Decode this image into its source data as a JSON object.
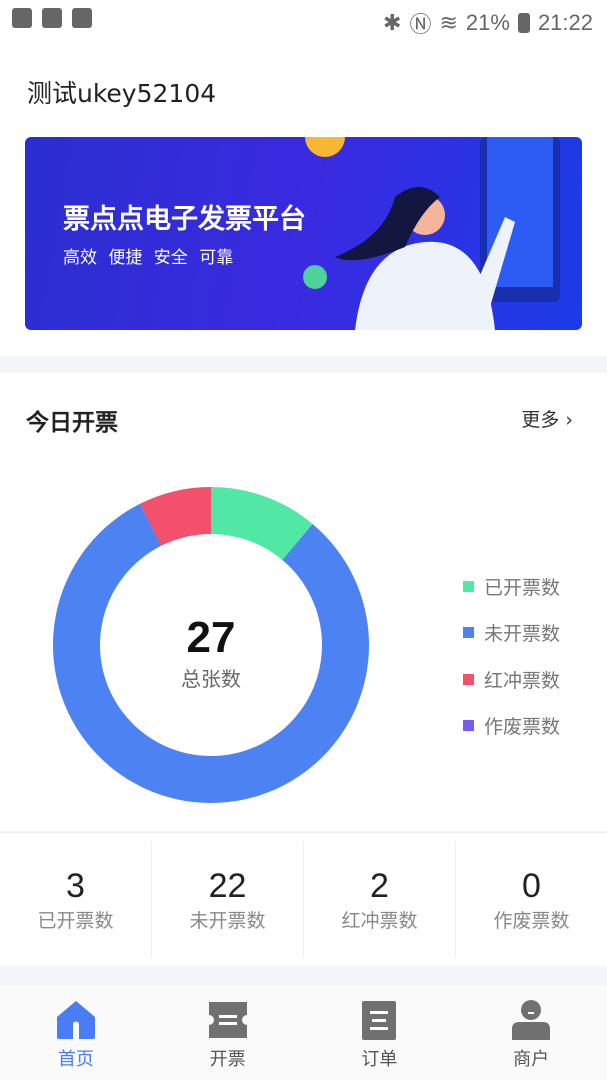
{
  "status": {
    "battery": "21%",
    "time": "21:22"
  },
  "header": {
    "title": "测试ukey52104"
  },
  "banner": {
    "headline": "票点点电子发票平台",
    "tagline": "高效 便捷 安全 可靠"
  },
  "today": {
    "title": "今日开票",
    "more": "更多",
    "total": "27",
    "total_label": "总张数"
  },
  "chart_data": {
    "type": "pie",
    "categories": [
      "已开票数",
      "未开票数",
      "红冲票数",
      "作废票数"
    ],
    "values": [
      3,
      22,
      2,
      0
    ],
    "colors": [
      "#50e8a4",
      "#4c82f2",
      "#f2506b",
      "#7a5af5"
    ],
    "legend": "right"
  },
  "stats": [
    {
      "value": "3",
      "label": "已开票数"
    },
    {
      "value": "22",
      "label": "未开票数"
    },
    {
      "value": "2",
      "label": "红冲票数"
    },
    {
      "value": "0",
      "label": "作废票数"
    }
  ],
  "nav": [
    {
      "label": "首页",
      "icon": "home-icon",
      "active": true
    },
    {
      "label": "开票",
      "icon": "ticket-icon"
    },
    {
      "label": "订单",
      "icon": "order-icon"
    },
    {
      "label": "商户",
      "icon": "merchant-icon"
    }
  ],
  "colors": {
    "accent": "#4a7cf5"
  }
}
